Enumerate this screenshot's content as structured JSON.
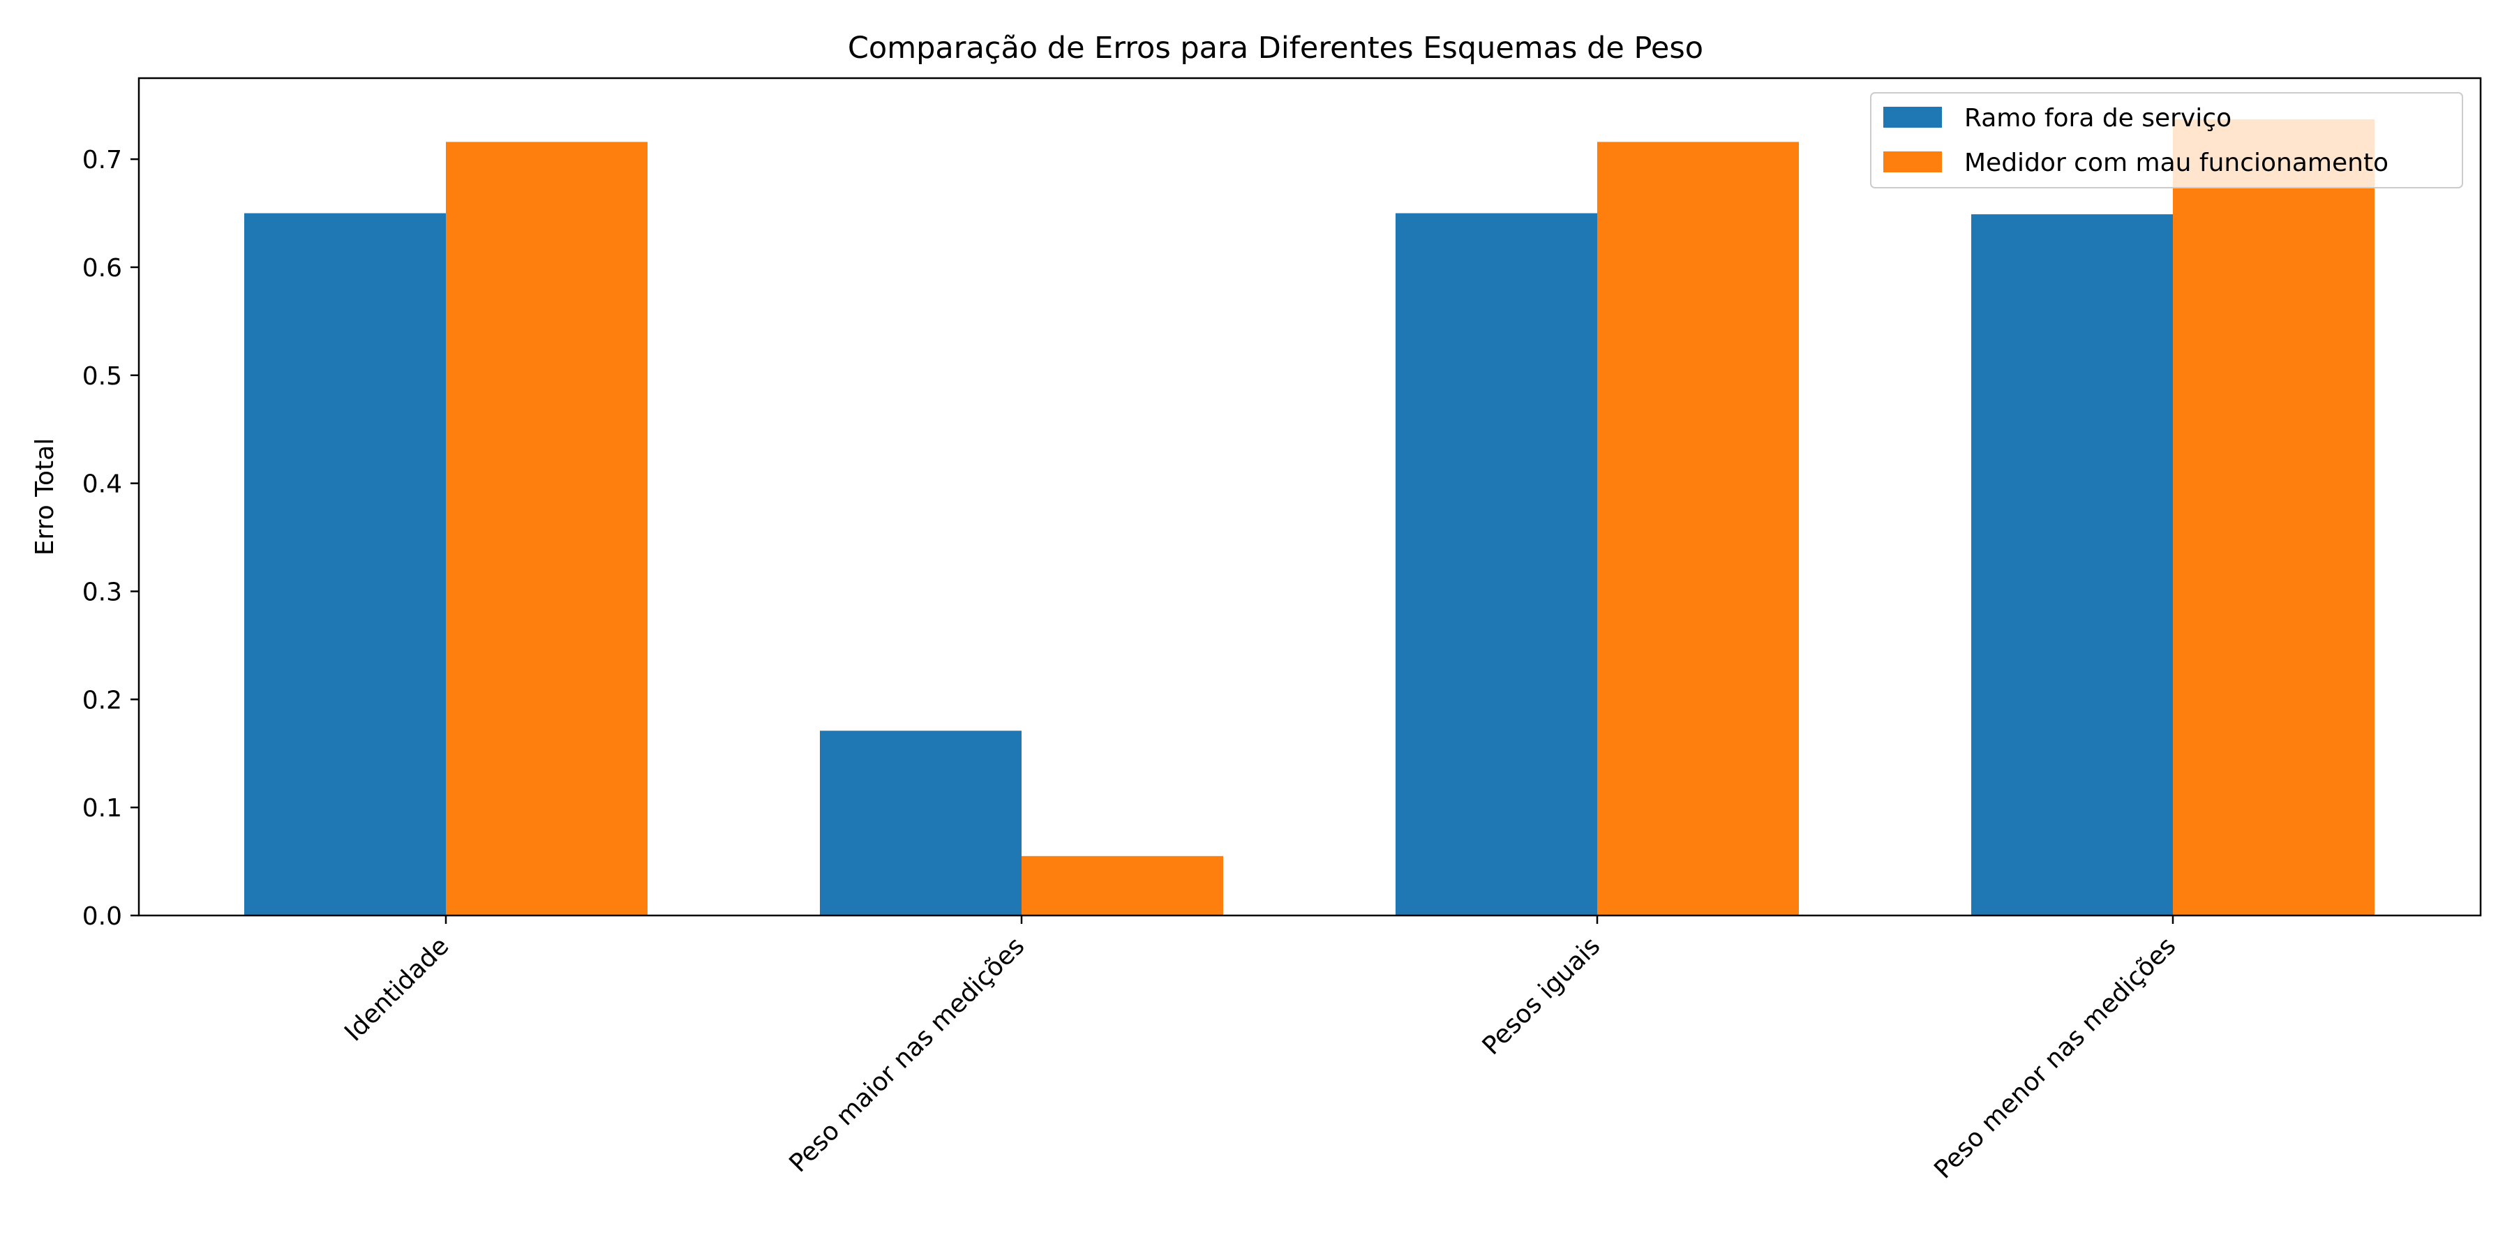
{
  "chart_data": {
    "type": "bar",
    "title": "Comparação de Erros para Diferentes Esquemas de Peso",
    "xlabel": "",
    "ylabel": "Erro Total",
    "categories": [
      "Identidade",
      "Peso maior nas medições",
      "Pesos iguais",
      "Peso menor nas medições"
    ],
    "series": [
      {
        "name": "Ramo fora de serviço",
        "color": "#1f77b4",
        "values": [
          0.65,
          0.171,
          0.65,
          0.649
        ]
      },
      {
        "name": "Medidor com mau funcionamento",
        "color": "#ff7f0e",
        "values": [
          0.716,
          0.055,
          0.716,
          0.737
        ]
      }
    ],
    "ylim": [
      0,
      0.775
    ],
    "yticks": [
      "0.0",
      "0.1",
      "0.2",
      "0.3",
      "0.4",
      "0.5",
      "0.6",
      "0.7"
    ],
    "legend_position": "top-right",
    "grid": false
  }
}
